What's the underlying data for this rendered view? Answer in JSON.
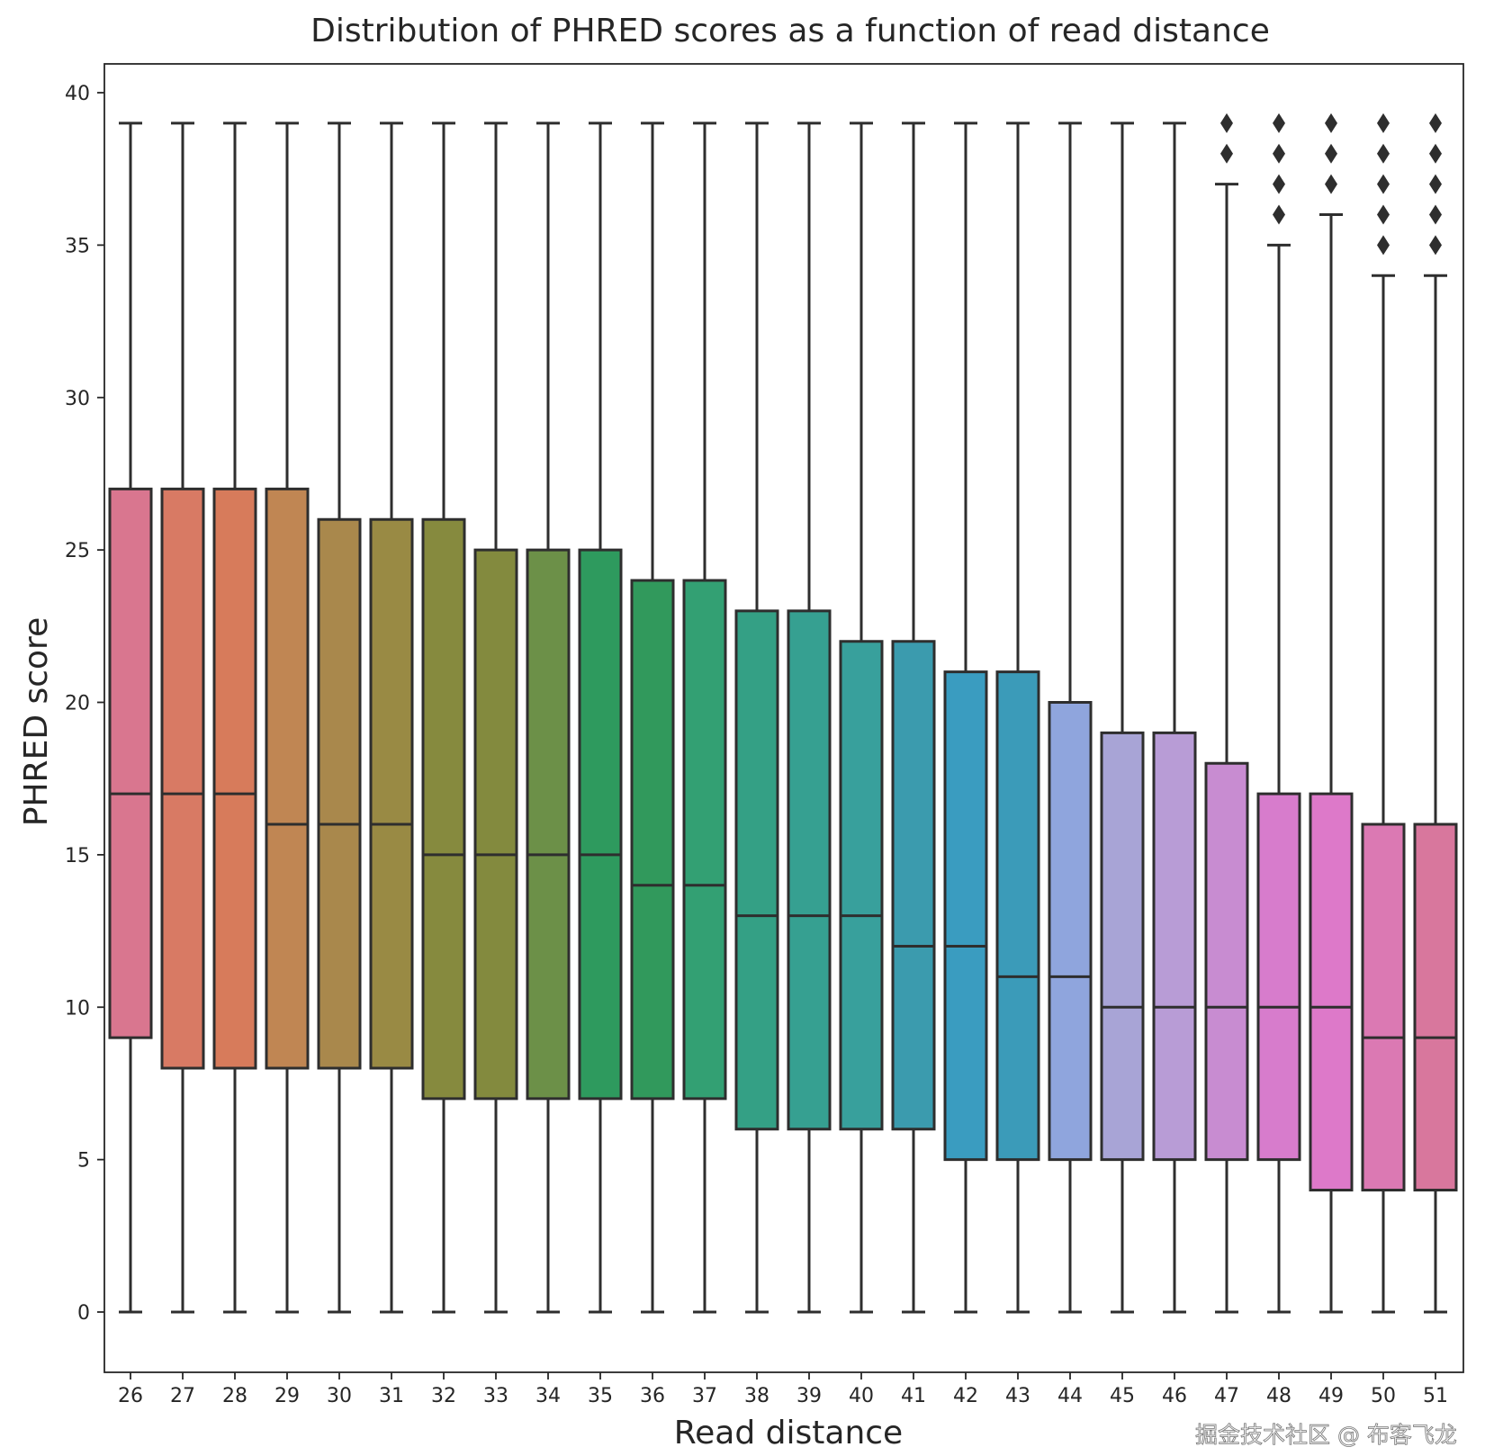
{
  "chart_data": {
    "type": "box",
    "title": "Distribution of PHRED scores as a function of read distance",
    "xlabel": "Read distance",
    "ylabel": "PHRED score",
    "ylim": [
      -2,
      41
    ],
    "yticks": [
      0,
      5,
      10,
      15,
      20,
      25,
      30,
      35,
      40
    ],
    "grid": false,
    "categories": [
      "26",
      "27",
      "28",
      "29",
      "30",
      "31",
      "32",
      "33",
      "34",
      "35",
      "36",
      "37",
      "38",
      "39",
      "40",
      "41",
      "42",
      "43",
      "44",
      "45",
      "46",
      "47",
      "48",
      "49",
      "50",
      "51"
    ],
    "boxes": [
      {
        "whislo": 0,
        "q1": 9,
        "med": 17,
        "q3": 27,
        "whishi": 39,
        "fliers": []
      },
      {
        "whislo": 0,
        "q1": 8,
        "med": 17,
        "q3": 27,
        "whishi": 39,
        "fliers": []
      },
      {
        "whislo": 0,
        "q1": 8,
        "med": 17,
        "q3": 27,
        "whishi": 39,
        "fliers": []
      },
      {
        "whislo": 0,
        "q1": 8,
        "med": 16,
        "q3": 27,
        "whishi": 39,
        "fliers": []
      },
      {
        "whislo": 0,
        "q1": 8,
        "med": 16,
        "q3": 26,
        "whishi": 39,
        "fliers": []
      },
      {
        "whislo": 0,
        "q1": 8,
        "med": 16,
        "q3": 26,
        "whishi": 39,
        "fliers": []
      },
      {
        "whislo": 0,
        "q1": 7,
        "med": 15,
        "q3": 26,
        "whishi": 39,
        "fliers": []
      },
      {
        "whislo": 0,
        "q1": 7,
        "med": 15,
        "q3": 25,
        "whishi": 39,
        "fliers": []
      },
      {
        "whislo": 0,
        "q1": 7,
        "med": 15,
        "q3": 25,
        "whishi": 39,
        "fliers": []
      },
      {
        "whislo": 0,
        "q1": 7,
        "med": 15,
        "q3": 25,
        "whishi": 39,
        "fliers": []
      },
      {
        "whislo": 0,
        "q1": 7,
        "med": 14,
        "q3": 24,
        "whishi": 39,
        "fliers": []
      },
      {
        "whislo": 0,
        "q1": 7,
        "med": 14,
        "q3": 24,
        "whishi": 39,
        "fliers": []
      },
      {
        "whislo": 0,
        "q1": 6,
        "med": 13,
        "q3": 23,
        "whishi": 39,
        "fliers": []
      },
      {
        "whislo": 0,
        "q1": 6,
        "med": 13,
        "q3": 23,
        "whishi": 39,
        "fliers": []
      },
      {
        "whislo": 0,
        "q1": 6,
        "med": 13,
        "q3": 22,
        "whishi": 39,
        "fliers": []
      },
      {
        "whislo": 0,
        "q1": 6,
        "med": 12,
        "q3": 22,
        "whishi": 39,
        "fliers": []
      },
      {
        "whislo": 0,
        "q1": 5,
        "med": 12,
        "q3": 21,
        "whishi": 39,
        "fliers": []
      },
      {
        "whislo": 0,
        "q1": 5,
        "med": 11,
        "q3": 21,
        "whishi": 39,
        "fliers": []
      },
      {
        "whislo": 0,
        "q1": 5,
        "med": 11,
        "q3": 20,
        "whishi": 39,
        "fliers": []
      },
      {
        "whislo": 0,
        "q1": 5,
        "med": 10,
        "q3": 19,
        "whishi": 39,
        "fliers": []
      },
      {
        "whislo": 0,
        "q1": 5,
        "med": 10,
        "q3": 19,
        "whishi": 39,
        "fliers": []
      },
      {
        "whislo": 0,
        "q1": 5,
        "med": 10,
        "q3": 18,
        "whishi": 37,
        "fliers": [
          38,
          39
        ]
      },
      {
        "whislo": 0,
        "q1": 5,
        "med": 10,
        "q3": 17,
        "whishi": 35,
        "fliers": [
          36,
          37,
          38,
          39
        ]
      },
      {
        "whislo": 0,
        "q1": 4,
        "med": 10,
        "q3": 17,
        "whishi": 36,
        "fliers": [
          37,
          38,
          39
        ]
      },
      {
        "whislo": 0,
        "q1": 4,
        "med": 9,
        "q3": 16,
        "whishi": 34,
        "fliers": [
          35,
          36,
          37,
          38,
          39
        ]
      },
      {
        "whislo": 0,
        "q1": 4,
        "med": 9,
        "q3": 16,
        "whishi": 34,
        "fliers": [
          35,
          36,
          37,
          38,
          39
        ]
      }
    ],
    "colors": [
      "#d9768f",
      "#d87a64",
      "#d77b5b",
      "#c08653",
      "#a9884c",
      "#998a44",
      "#868a3e",
      "#838a3e",
      "#6c9048",
      "#2e9a5e",
      "#31995c",
      "#33a073",
      "#34a085",
      "#36a091",
      "#38a09c",
      "#3b9bae",
      "#3a9cc0",
      "#3b9bb9",
      "#8fa5dd",
      "#a8a4d6",
      "#b89cd6",
      "#c88cd1",
      "#d77ccc",
      "#dd79c9",
      "#db79b3",
      "#d8779d"
    ],
    "edge_color": "#2e2e2e",
    "flier_marker": "diamond"
  },
  "watermark": "掘金技术社区 @ 布客飞龙"
}
